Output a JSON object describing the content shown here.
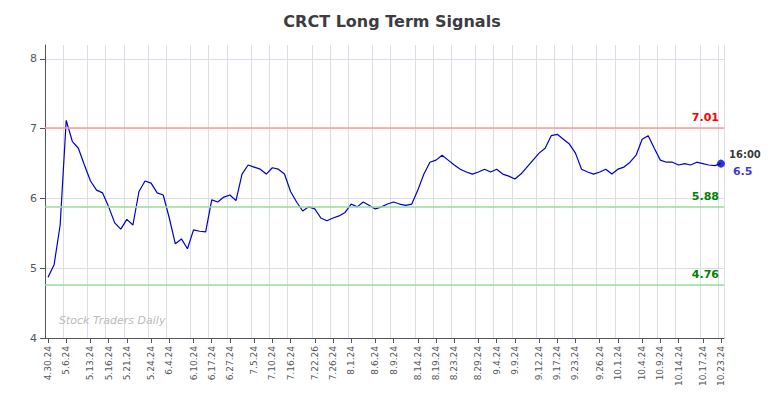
{
  "chart_data": {
    "type": "line",
    "title": "CRCT Long Term Signals",
    "color": "#0000cc",
    "grid": true,
    "categories": [
      "4.30.24",
      null,
      null,
      "5.6.24",
      null,
      null,
      null,
      "5.13.24",
      null,
      null,
      "5.16.24",
      null,
      null,
      "5.21.24",
      null,
      null,
      null,
      "5.24.24",
      null,
      null,
      "6.4.24",
      null,
      null,
      null,
      "6.10.24",
      null,
      null,
      "6.17.24",
      null,
      null,
      "6.27.24",
      null,
      null,
      null,
      "7.5.24",
      null,
      null,
      "7.10.24",
      null,
      null,
      "7.16.24",
      null,
      null,
      null,
      "7.22.26",
      null,
      null,
      "7.26.24",
      null,
      null,
      "8.1.24",
      null,
      null,
      null,
      "8.6.24",
      null,
      null,
      "8.9.24",
      null,
      null,
      null,
      "8.14.24",
      null,
      null,
      "8.19.24",
      null,
      null,
      "8.23.24",
      null,
      null,
      null,
      "8.29.24",
      null,
      null,
      "9.4.24",
      null,
      null,
      "9.9.24",
      null,
      null,
      null,
      "9.12.24",
      null,
      null,
      "9.17.24",
      null,
      null,
      "9.23.24",
      null,
      null,
      null,
      "9.26.24",
      null,
      null,
      "10.1.24",
      null,
      null,
      null,
      "10.4.24",
      null,
      null,
      "10.9.24",
      null,
      null,
      "10.14.24",
      null,
      null,
      null,
      "10.17.24",
      null,
      null,
      "10.23.24"
    ],
    "values": [
      4.87,
      5.05,
      5.62,
      7.12,
      6.82,
      6.72,
      6.48,
      6.25,
      6.12,
      6.08,
      5.88,
      5.65,
      5.56,
      5.7,
      5.62,
      6.1,
      6.25,
      6.22,
      6.08,
      6.05,
      5.72,
      5.35,
      5.42,
      5.28,
      5.55,
      5.53,
      5.52,
      5.98,
      5.95,
      6.02,
      6.05,
      5.97,
      6.35,
      6.48,
      6.45,
      6.42,
      6.35,
      6.44,
      6.42,
      6.35,
      6.1,
      5.95,
      5.82,
      5.88,
      5.85,
      5.72,
      5.68,
      5.72,
      5.75,
      5.8,
      5.92,
      5.88,
      5.95,
      5.9,
      5.85,
      5.88,
      5.92,
      5.95,
      5.92,
      5.9,
      5.92,
      6.12,
      6.35,
      6.52,
      6.55,
      6.62,
      6.55,
      6.48,
      6.42,
      6.38,
      6.35,
      6.38,
      6.42,
      6.38,
      6.42,
      6.35,
      6.32,
      6.28,
      6.35,
      6.45,
      6.55,
      6.65,
      6.72,
      6.9,
      6.92,
      6.85,
      6.78,
      6.65,
      6.42,
      6.38,
      6.35,
      6.38,
      6.42,
      6.35,
      6.42,
      6.45,
      6.52,
      6.62,
      6.85,
      6.9,
      6.72,
      6.55,
      6.52,
      6.52,
      6.48,
      6.5,
      6.48,
      6.52,
      6.5,
      6.48,
      6.47,
      6.5
    ],
    "ylim": [
      4.0,
      8.2
    ],
    "yticks": [
      4,
      5,
      6,
      7,
      8
    ],
    "hlines": [
      {
        "y": 7.01,
        "label": "7.01",
        "color": "#ff9999",
        "label_color": "red"
      },
      {
        "y": 5.88,
        "label": "5.88",
        "color": "#99dd99",
        "label_color": "green"
      },
      {
        "y": 4.76,
        "label": "4.76",
        "color": "#99dd99",
        "label_color": "green"
      }
    ],
    "annotations": [
      {
        "text": "16:00",
        "x": "10.23.24",
        "y": 6.5
      },
      {
        "text": "6.5",
        "x": "10.23.24",
        "y": 6.5,
        "color": "#0000cc",
        "marker": "circle"
      }
    ],
    "watermark": "Stock Traders Daily"
  }
}
